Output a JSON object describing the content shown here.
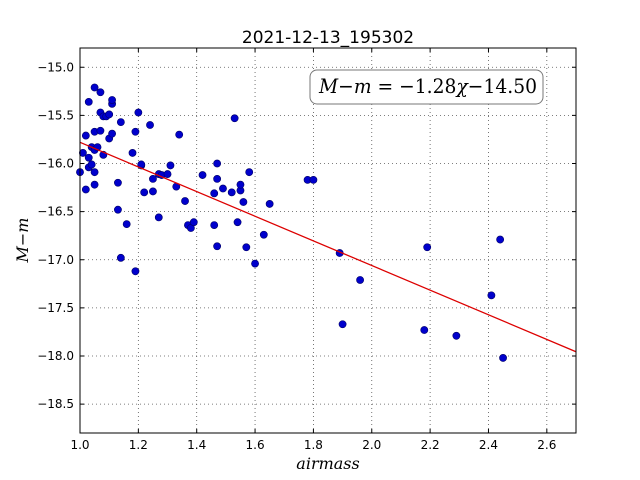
{
  "chart_data": {
    "type": "scatter",
    "title": "2021-12-13_195302",
    "xlabel": "airmass",
    "ylabel": "M−m",
    "xlim": [
      1.0,
      2.7
    ],
    "ylim": [
      -18.8,
      -14.8
    ],
    "y_inverted": true,
    "grid": true,
    "xticks": [
      1.0,
      1.2,
      1.4,
      1.6,
      1.8,
      2.0,
      2.2,
      2.4,
      2.6
    ],
    "xtick_labels": [
      "1.0",
      "1.2",
      "1.4",
      "1.6",
      "1.8",
      "2.0",
      "2.2",
      "2.4",
      "2.6"
    ],
    "yticks": [
      -15.0,
      -15.5,
      -16.0,
      -16.5,
      -17.0,
      -17.5,
      -18.0,
      -18.5
    ],
    "ytick_labels": [
      "−15.0",
      "−15.5",
      "−16.0",
      "−16.5",
      "−17.0",
      "−17.5",
      "−18.0",
      "−18.5"
    ],
    "annotation": {
      "lhs": "M−m",
      "eq": " = −1.28",
      "var": "χ",
      "rest": "−14.50"
    },
    "fit": {
      "slope": -1.28,
      "intercept": -14.5,
      "color": "#dd0000"
    },
    "point_color": "#0000cc",
    "points": [
      [
        1.0,
        -16.09
      ],
      [
        1.01,
        -15.89
      ],
      [
        1.02,
        -15.71
      ],
      [
        1.02,
        -16.27
      ],
      [
        1.03,
        -15.36
      ],
      [
        1.03,
        -16.04
      ],
      [
        1.03,
        -15.94
      ],
      [
        1.04,
        -16.01
      ],
      [
        1.04,
        -15.83
      ],
      [
        1.05,
        -15.21
      ],
      [
        1.05,
        -16.09
      ],
      [
        1.05,
        -16.22
      ],
      [
        1.05,
        -15.86
      ],
      [
        1.05,
        -15.67
      ],
      [
        1.06,
        -15.83
      ],
      [
        1.07,
        -15.26
      ],
      [
        1.07,
        -15.47
      ],
      [
        1.07,
        -15.66
      ],
      [
        1.08,
        -15.91
      ],
      [
        1.08,
        -15.51
      ],
      [
        1.09,
        -15.51
      ],
      [
        1.1,
        -15.49
      ],
      [
        1.1,
        -15.74
      ],
      [
        1.11,
        -15.38
      ],
      [
        1.11,
        -15.34
      ],
      [
        1.11,
        -15.69
      ],
      [
        1.13,
        -16.2
      ],
      [
        1.13,
        -16.48
      ],
      [
        1.14,
        -15.57
      ],
      [
        1.14,
        -16.98
      ],
      [
        1.16,
        -16.63
      ],
      [
        1.18,
        -15.89
      ],
      [
        1.19,
        -15.67
      ],
      [
        1.19,
        -17.12
      ],
      [
        1.2,
        -15.47
      ],
      [
        1.21,
        -16.02
      ],
      [
        1.21,
        -16.01
      ],
      [
        1.22,
        -16.3
      ],
      [
        1.24,
        -15.6
      ],
      [
        1.25,
        -16.16
      ],
      [
        1.25,
        -16.29
      ],
      [
        1.27,
        -16.56
      ],
      [
        1.27,
        -16.11
      ],
      [
        1.28,
        -16.12
      ],
      [
        1.3,
        -16.11
      ],
      [
        1.31,
        -16.02
      ],
      [
        1.33,
        -16.24
      ],
      [
        1.34,
        -15.7
      ],
      [
        1.36,
        -16.39
      ],
      [
        1.37,
        -16.64
      ],
      [
        1.38,
        -16.67
      ],
      [
        1.39,
        -16.61
      ],
      [
        1.42,
        -16.12
      ],
      [
        1.46,
        -16.31
      ],
      [
        1.46,
        -16.64
      ],
      [
        1.47,
        -16.16
      ],
      [
        1.47,
        -16.0
      ],
      [
        1.47,
        -16.86
      ],
      [
        1.49,
        -16.26
      ],
      [
        1.52,
        -16.3
      ],
      [
        1.53,
        -15.53
      ],
      [
        1.54,
        -16.61
      ],
      [
        1.55,
        -16.28
      ],
      [
        1.55,
        -16.22
      ],
      [
        1.56,
        -16.4
      ],
      [
        1.57,
        -16.87
      ],
      [
        1.58,
        -16.09
      ],
      [
        1.6,
        -17.04
      ],
      [
        1.63,
        -16.74
      ],
      [
        1.65,
        -16.42
      ],
      [
        1.78,
        -16.17
      ],
      [
        1.8,
        -16.17
      ],
      [
        1.89,
        -16.93
      ],
      [
        1.9,
        -17.67
      ],
      [
        1.96,
        -17.21
      ],
      [
        2.18,
        -17.73
      ],
      [
        2.19,
        -16.87
      ],
      [
        2.29,
        -17.79
      ],
      [
        2.41,
        -17.37
      ],
      [
        2.44,
        -16.79
      ],
      [
        2.45,
        -18.02
      ]
    ]
  }
}
